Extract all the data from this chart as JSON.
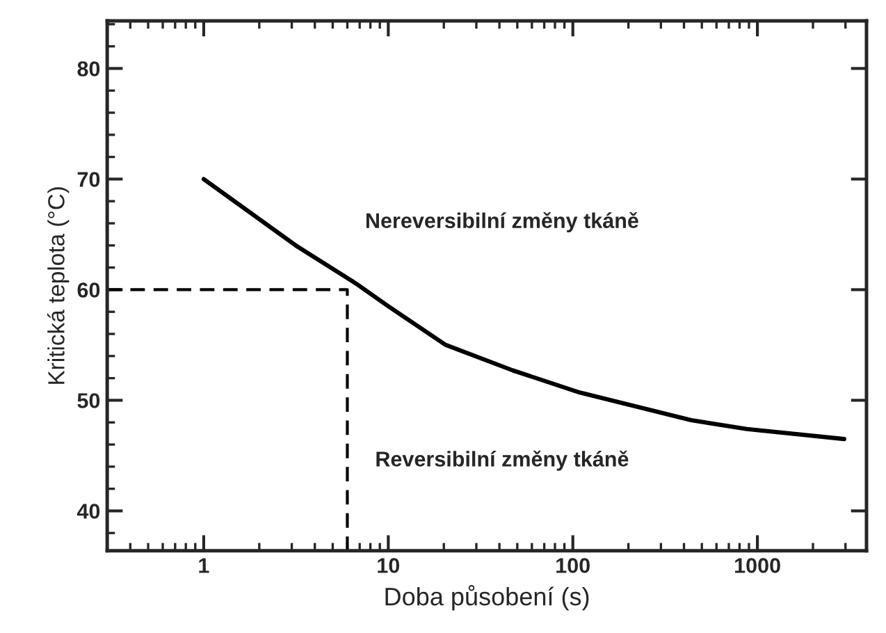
{
  "chart_data": {
    "type": "line",
    "xlabel": "Doba působení (s)",
    "ylabel": "Kritická teplota (°C)",
    "log": "x",
    "xlim": [
      0.3,
      3900
    ],
    "ylim": [
      36.4,
      84.3
    ],
    "xticks": [
      1,
      10,
      100,
      1000
    ],
    "yticks": [
      40,
      50,
      60,
      70,
      80
    ],
    "grid": false,
    "legend": false,
    "series": [
      {
        "color": "#000000",
        "line_style": "solid",
        "x": [
          1,
          3.15,
          6.76,
          10,
          20.5,
          47.3,
          109,
          437,
          875,
          2950
        ],
        "values": [
          70,
          64.0,
          60.5,
          58.5,
          55.0,
          52.7,
          50.7,
          48.2,
          47.4,
          46.5
        ]
      },
      {
        "color": "#000000",
        "line_style": "dashed",
        "x": [
          0.3,
          6,
          6
        ],
        "values": [
          60,
          60,
          36.4
        ]
      }
    ],
    "annotations": [
      "Nereversibilní změny tkáně",
      "Reversibilní změny tkáně"
    ]
  }
}
